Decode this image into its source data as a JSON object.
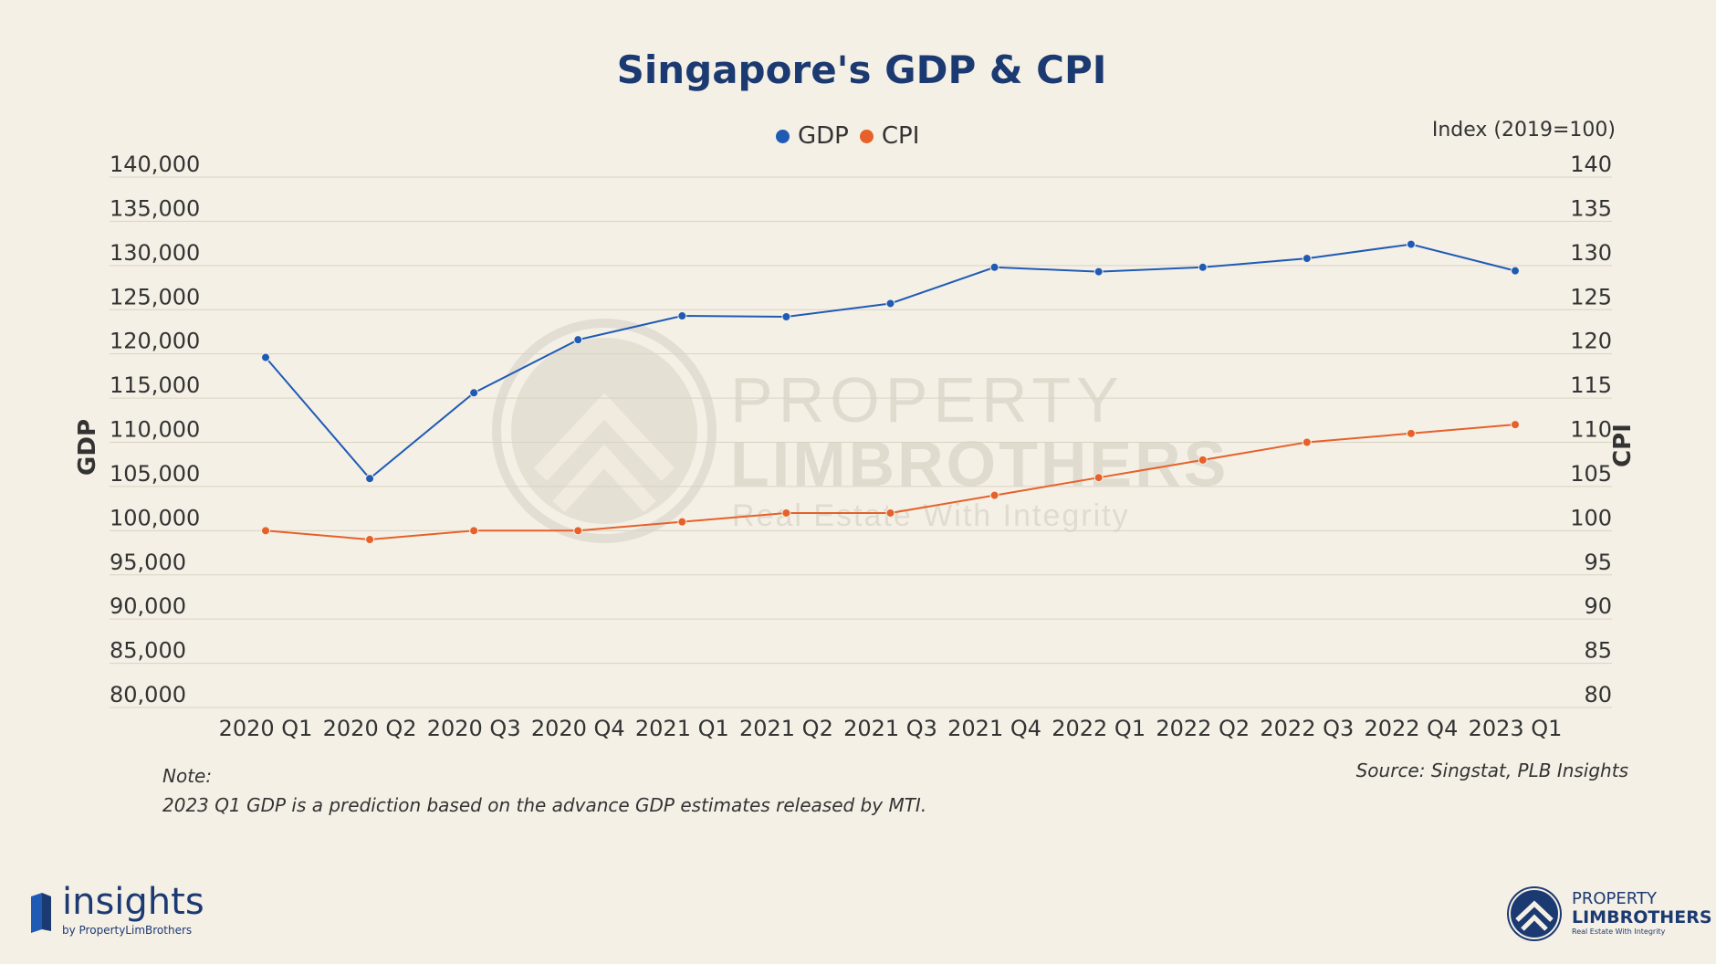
{
  "title": "Singapore's GDP & CPI",
  "right_axis_unit": "Index (2019=100)",
  "note": {
    "label": "Note:",
    "text": "2023 Q1 GDP is a prediction based on the advance GDP estimates released by MTI."
  },
  "source": "Source: Singstat, PLB Insights",
  "logos": {
    "insights": {
      "name": "insights",
      "by": "by PropertyLimBrothers"
    },
    "plb": {
      "line1": "PROPERTY",
      "line2": "LIMBROTHERS",
      "tagline": "Real Estate With Integrity"
    },
    "watermark": {
      "line1": "PROPERTY",
      "line2": "LIMBROTHERS",
      "tagline": "Real Estate With Integrity"
    }
  },
  "colors": {
    "gdp": "#1f5bb5",
    "cpi": "#e6612a",
    "grid": "#d9d2c4",
    "title": "#1c3a72"
  },
  "chart_data": {
    "type": "line",
    "title": "Singapore's GDP & CPI",
    "categories": [
      "2020 Q1",
      "2020 Q2",
      "2020 Q3",
      "2020 Q4",
      "2021 Q1",
      "2021 Q2",
      "2021 Q3",
      "2021 Q4",
      "2022 Q1",
      "2022 Q2",
      "2022 Q3",
      "2022 Q4",
      "2023 Q1"
    ],
    "ylabel_left": "GDP",
    "ylabel_right": "CPI",
    "ylim_left": [
      80000,
      140000
    ],
    "ylim_right": [
      80,
      140
    ],
    "yticks_left": [
      "140,000",
      "135,000",
      "130,000",
      "125,000",
      "120,000",
      "115,000",
      "110,000",
      "105,000",
      "100,000",
      "95,000",
      "90,000",
      "85,000",
      "80,000"
    ],
    "yticks_right": [
      "140",
      "135",
      "130",
      "125",
      "120",
      "115",
      "110",
      "105",
      "100",
      "95",
      "90",
      "85",
      "80"
    ],
    "grid": true,
    "legend": "top-center",
    "series": [
      {
        "name": "GDP",
        "axis": "left",
        "values": [
          119600,
          105900,
          115600,
          121600,
          124300,
          124200,
          125700,
          129800,
          129300,
          129800,
          130800,
          132400,
          129400
        ]
      },
      {
        "name": "CPI",
        "axis": "right",
        "values": [
          100.0,
          99.0,
          100.0,
          100.0,
          101.0,
          102.0,
          102.0,
          104.0,
          106.0,
          108.0,
          110.0,
          111.0,
          112.0
        ]
      }
    ]
  }
}
